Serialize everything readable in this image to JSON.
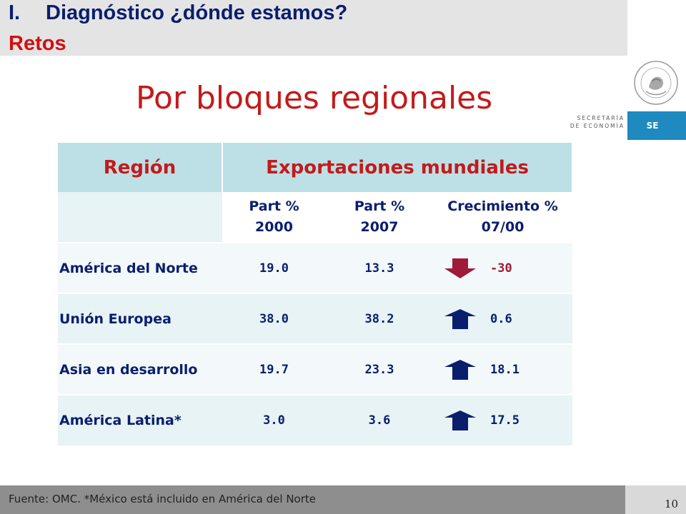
{
  "header": {
    "section_number": "I.",
    "section_title": "Diagnóstico ¿dónde estamos?",
    "subtitle": "Retos"
  },
  "page_title": "Por bloques regionales",
  "logo": {
    "ministry_line1": "SECRETARÍA",
    "ministry_line2": "DE ECONOMÍA",
    "badge": "SE",
    "seal_text": "ESTADOS UNIDOS MEXICANOS"
  },
  "table": {
    "header_region": "Región",
    "header_exports": "Exportaciones mundiales",
    "columns": [
      {
        "line1": "Part %",
        "line2": "2000"
      },
      {
        "line1": "Part %",
        "line2": "2007"
      },
      {
        "line1": "Crecimiento %",
        "line2": "07/00"
      }
    ],
    "rows": [
      {
        "region": "América del Norte",
        "part2000": "19.0",
        "part2007": "13.3",
        "growth": "-30",
        "trend": "down"
      },
      {
        "region": "Unión Europea",
        "part2000": "38.0",
        "part2007": "38.2",
        "growth": "0.6",
        "trend": "up"
      },
      {
        "region": "Asia en desarrollo",
        "part2000": "19.7",
        "part2007": "23.3",
        "growth": "18.1",
        "trend": "up"
      },
      {
        "region": "América Latina*",
        "part2000": "3.0",
        "part2007": "3.6",
        "growth": "17.5",
        "trend": "up"
      }
    ]
  },
  "footer": {
    "source": "Fuente: OMC. *México está incluido en América del Norte",
    "page_number": "10"
  },
  "colors": {
    "title_red": "#c41a1a",
    "navy": "#0a1e6e",
    "header_teal": "#bce0e6",
    "down_arrow": "#a01a3a",
    "up_arrow": "#0a1e6e"
  }
}
